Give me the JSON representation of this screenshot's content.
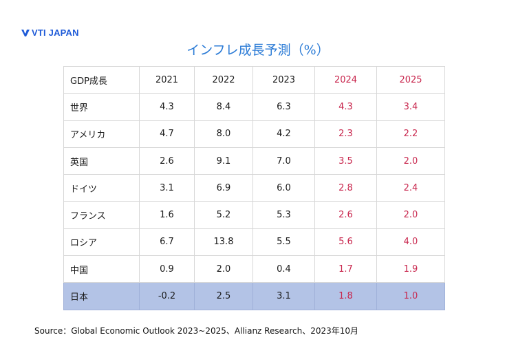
{
  "logo": {
    "text": "VTI JAPAN",
    "color": "#1f5bd8"
  },
  "title": "インフレ成長予測（%）",
  "chart_data": {
    "type": "table",
    "title": "インフレ成長予測（%）",
    "columns": [
      "GDP成長",
      "2021",
      "2022",
      "2023",
      "2024",
      "2025"
    ],
    "forecast_columns": [
      "2024",
      "2025"
    ],
    "rows": [
      {
        "label": "世界",
        "values": [
          "4.3",
          "8.4",
          "6.3",
          "4.3",
          "3.4"
        ]
      },
      {
        "label": "アメリカ",
        "values": [
          "4.7",
          "8.0",
          "4.2",
          "2.3",
          "2.2"
        ]
      },
      {
        "label": "英国",
        "values": [
          "2.6",
          "9.1",
          "7.0",
          "3.5",
          "2.0"
        ]
      },
      {
        "label": "ドイツ",
        "values": [
          "3.1",
          "6.9",
          "6.0",
          "2.8",
          "2.4"
        ]
      },
      {
        "label": "フランス",
        "values": [
          "1.6",
          "5.2",
          "5.3",
          "2.6",
          "2.0"
        ]
      },
      {
        "label": "ロシア",
        "values": [
          "6.7",
          "13.8",
          "5.5",
          "5.6",
          "4.0"
        ]
      },
      {
        "label": "中国",
        "values": [
          "0.9",
          "2.0",
          "0.4",
          "1.7",
          "1.9"
        ]
      },
      {
        "label": "日本",
        "values": [
          "-0.2",
          "2.5",
          "3.1",
          "1.8",
          "1.0"
        ],
        "highlighted": true
      }
    ]
  },
  "colors": {
    "title": "#2b7bd6",
    "forecast_text": "#c8254c",
    "highlight_row": "#b3c3e6",
    "grid": "#d7d7d7"
  },
  "source": "Source：Global Economic Outlook 2023~2025、Allianz Research、2023年10月"
}
